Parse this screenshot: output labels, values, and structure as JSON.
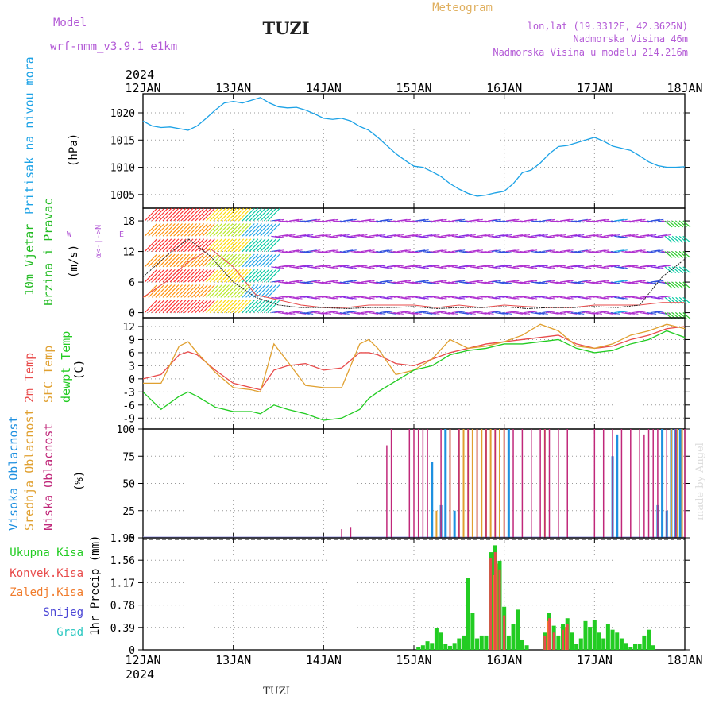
{
  "header": {
    "model_label": "Model",
    "model_name": "wrf-nmm_v3.9.1 e1km",
    "station": "TUZI",
    "meteogram": "Meteogram",
    "lonlat": "lon,lat (19.3312E, 42.3625N)",
    "elevation": "Nadmorska Visina 46m",
    "model_elevation": "Nadmorska Visina u modelu 214.216m"
  },
  "time_axis": {
    "year": "2024",
    "days": [
      "12JAN",
      "13JAN",
      "14JAN",
      "15JAN",
      "16JAN",
      "17JAN",
      "18JAN"
    ]
  },
  "footer": {
    "station": "TUZI",
    "credit": "made by Angel"
  },
  "colors": {
    "pressure": "#1ca2e6",
    "wind_label": "#22bb22",
    "wind_unit_symbol": "#b35ad6",
    "temp2m": "#e84b4b",
    "sfc": "#e0a030",
    "dewpt": "#22cc22",
    "cloud_high": "#1e90e0",
    "cloud_mid": "#e0a030",
    "cloud_low": "#c0287a",
    "precip_total": "#22cc22",
    "precip_conv": "#e84b4b",
    "precip_frozen": "#f07b2b",
    "snow": "#4a45d6",
    "grad": "#2ac7c0",
    "header_purple": "#b35ad6",
    "header_orange": "#e0b060"
  },
  "chart_data": [
    {
      "type": "line",
      "id": "pressure",
      "ylabel_lines": [
        "Pritisak na nivou mora",
        "(hPa)"
      ],
      "yticks": [
        1005,
        1010,
        1015,
        1020
      ],
      "ylim": [
        1002.5,
        1023.5
      ],
      "x_unit": "days since 12JAN 00",
      "x": [
        0,
        0.1,
        0.2,
        0.3,
        0.4,
        0.5,
        0.6,
        0.7,
        0.8,
        0.9,
        1.0,
        1.1,
        1.2,
        1.3,
        1.4,
        1.5,
        1.6,
        1.7,
        1.8,
        1.9,
        2.0,
        2.1,
        2.2,
        2.3,
        2.4,
        2.5,
        2.6,
        2.7,
        2.8,
        2.9,
        3.0,
        3.1,
        3.2,
        3.3,
        3.4,
        3.5,
        3.6,
        3.7,
        3.8,
        3.9,
        4.0,
        4.1,
        4.2,
        4.3,
        4.4,
        4.5,
        4.6,
        4.7,
        4.8,
        4.9,
        5.0,
        5.1,
        5.2,
        5.3,
        5.4,
        5.5,
        5.6,
        5.7,
        5.8,
        5.9,
        6.0
      ],
      "series": [
        {
          "values": [
            1018.5,
            1017.6,
            1017.3,
            1017.4,
            1017.1,
            1016.8,
            1017.6,
            1019.0,
            1020.5,
            1021.8,
            1022.1,
            1021.8,
            1022.3,
            1022.8,
            1021.8,
            1021.1,
            1020.9,
            1021.0,
            1020.5,
            1019.8,
            1019.0,
            1018.8,
            1019.0,
            1018.5,
            1017.5,
            1016.8,
            1015.5,
            1014.0,
            1012.5,
            1011.3,
            1010.2,
            1010.0,
            1009.2,
            1008.3,
            1007.0,
            1006.0,
            1005.2,
            1004.7,
            1004.9,
            1005.3,
            1005.6,
            1007.0,
            1009.0,
            1009.5,
            1010.8,
            1012.5,
            1013.8,
            1014.0,
            1014.5,
            1015.0,
            1015.5,
            1014.8,
            1013.9,
            1013.5,
            1013.1,
            1012.1,
            1011.0,
            1010.3,
            1010.0,
            1010.0,
            1010.1
          ]
        }
      ]
    },
    {
      "type": "line",
      "id": "wind",
      "ylabel_lines": [
        "10m Vjetar",
        "Brzina i Pravac",
        "(m/s)"
      ],
      "direction_key": "N",
      "direction_labels": [
        "W",
        "E",
        "α<-|->"
      ],
      "yticks": [
        0,
        6,
        12,
        18
      ],
      "ylim": [
        -1,
        20.5
      ],
      "x": [
        0,
        0.25,
        0.5,
        0.75,
        1.0,
        1.25,
        1.5,
        1.75,
        2.0,
        2.25,
        2.5,
        2.75,
        3.0,
        3.25,
        3.5,
        3.75,
        4.0,
        4.25,
        4.5,
        4.75,
        5.0,
        5.25,
        5.5,
        5.75,
        6.0
      ],
      "series": [
        {
          "values": [
            3.0,
            6.0,
            10.0,
            12.5,
            9.0,
            3.5,
            2.5,
            1.5,
            1.0,
            1.0,
            1.5,
            1.5,
            1.5,
            1.0,
            1.5,
            1.0,
            1.5,
            1.2,
            1.0,
            1.0,
            1.5,
            1.5,
            1.5,
            2.0,
            2.0
          ]
        },
        {
          "values": [
            7.0,
            11.0,
            14.5,
            11.0,
            6.0,
            3.0,
            1.5,
            1.0,
            1.0,
            0.8,
            1.0,
            1.0,
            1.2,
            0.8,
            1.0,
            1.0,
            1.2,
            0.8,
            1.0,
            1.0,
            1.2,
            1.0,
            1.5,
            7.0,
            10.5
          ]
        }
      ]
    },
    {
      "type": "line",
      "id": "temperature",
      "ylabel_lines": [
        "2m Temp",
        "SFC Temp",
        "dewpt Temp",
        "(C)"
      ],
      "yticks": [
        -9,
        -6,
        -3,
        0,
        3,
        6,
        9,
        12
      ],
      "ylim": [
        -11.5,
        14
      ],
      "x": [
        0,
        0.2,
        0.4,
        0.5,
        0.6,
        0.8,
        1.0,
        1.2,
        1.3,
        1.45,
        1.6,
        1.8,
        2.0,
        2.2,
        2.4,
        2.5,
        2.6,
        2.8,
        3.0,
        3.2,
        3.4,
        3.6,
        3.8,
        4.0,
        4.2,
        4.4,
        4.6,
        4.8,
        5.0,
        5.2,
        5.4,
        5.6,
        5.8,
        6.0
      ],
      "series": [
        {
          "name": "2m Temp",
          "values": [
            0,
            1.0,
            5.5,
            6.2,
            5.5,
            2.0,
            -1.0,
            -2.0,
            -2.5,
            2.0,
            3.0,
            3.5,
            2.0,
            2.5,
            6.0,
            6.0,
            5.5,
            3.5,
            3.0,
            4.5,
            6.0,
            7.0,
            8.0,
            8.5,
            9.0,
            9.5,
            10.0,
            8.0,
            7.0,
            7.5,
            9.0,
            10.0,
            11.5,
            12.0
          ]
        },
        {
          "name": "SFC Temp",
          "values": [
            -1.0,
            -1.0,
            7.5,
            8.5,
            6.0,
            1.5,
            -2.0,
            -2.5,
            -3.0,
            8.0,
            4.0,
            -1.5,
            -2.0,
            -2.0,
            8.0,
            9.0,
            7.0,
            1.0,
            2.0,
            4.5,
            9.0,
            7.0,
            7.5,
            8.5,
            10.0,
            12.5,
            11.0,
            7.5,
            7.0,
            8.0,
            10.0,
            11.0,
            12.5,
            11.5
          ]
        },
        {
          "name": "dewpt Temp",
          "values": [
            -3.0,
            -7.0,
            -4.0,
            -3.0,
            -4.0,
            -6.5,
            -7.5,
            -7.5,
            -8.0,
            -6.0,
            -7.0,
            -8.0,
            -9.5,
            -9.0,
            -7.0,
            -4.5,
            -3.0,
            -0.5,
            2.0,
            3.0,
            5.5,
            6.5,
            7.0,
            8.0,
            8.0,
            8.5,
            9.0,
            7.0,
            6.0,
            6.5,
            8.0,
            9.0,
            11.0,
            9.5
          ]
        }
      ]
    },
    {
      "type": "bar",
      "id": "clouds",
      "ylabel_lines": [
        "Visoka Oblacnost",
        "Srednja Oblacnost",
        "Niska Oblacnost",
        "(%)"
      ],
      "yticks": [
        0,
        25,
        50,
        75,
        100
      ],
      "ylim": [
        0,
        100
      ],
      "series": [
        {
          "name": "Visoka Oblacnost",
          "x": [
            3.2,
            3.3,
            3.35,
            3.45,
            4.05,
            5.2,
            5.25,
            5.7,
            5.75,
            5.8,
            5.85,
            5.9,
            5.95
          ],
          "values": [
            70,
            30,
            100,
            25,
            100,
            75,
            95,
            30,
            100,
            25,
            100,
            100,
            100
          ]
        },
        {
          "name": "Srednja Oblacnost",
          "x": [
            3.25,
            3.4,
            3.5,
            3.55,
            3.6,
            3.65,
            3.7,
            3.75,
            3.8,
            3.85,
            3.9,
            3.95,
            4.0,
            4.45,
            5.85,
            5.92,
            5.97
          ],
          "values": [
            25,
            100,
            100,
            100,
            100,
            100,
            100,
            100,
            100,
            100,
            100,
            100,
            100,
            100,
            100,
            100,
            100
          ]
        },
        {
          "name": "Niska Oblacnost",
          "x": [
            2.2,
            2.3,
            2.7,
            2.75,
            2.95,
            3.0,
            3.05,
            3.1,
            3.15,
            3.3,
            3.4,
            3.5,
            3.6,
            3.7,
            3.8,
            3.9,
            4.0,
            4.1,
            4.2,
            4.3,
            4.4,
            4.45,
            4.5,
            4.6,
            4.7,
            5.0,
            5.1,
            5.2,
            5.3,
            5.4,
            5.5,
            5.55,
            5.6,
            5.65,
            5.7,
            5.8,
            5.9,
            6.0
          ],
          "values": [
            8,
            10,
            85,
            100,
            100,
            100,
            100,
            100,
            100,
            100,
            100,
            100,
            100,
            100,
            100,
            100,
            100,
            100,
            100,
            100,
            100,
            100,
            100,
            100,
            100,
            100,
            100,
            100,
            100,
            100,
            100,
            95,
            100,
            100,
            100,
            100,
            100,
            100
          ]
        }
      ]
    },
    {
      "type": "bar",
      "id": "precip",
      "ylabel_lines": [
        "1hr Precip (mm)"
      ],
      "legend": [
        "Ukupna Kisa",
        "Konvek.Kisa",
        "Zaledj.Kisa",
        "Snijeg",
        "Grad"
      ],
      "yticks": [
        0,
        0.39,
        0.78,
        1.17,
        1.56,
        1.95
      ],
      "ylim": [
        0,
        1.95
      ],
      "series": [
        {
          "name": "Ukupna Kisa",
          "x": [
            3.05,
            3.1,
            3.15,
            3.2,
            3.25,
            3.3,
            3.35,
            3.4,
            3.45,
            3.5,
            3.55,
            3.6,
            3.65,
            3.7,
            3.75,
            3.8,
            3.85,
            3.9,
            3.95,
            4.0,
            4.05,
            4.1,
            4.15,
            4.2,
            4.25,
            4.45,
            4.5,
            4.55,
            4.6,
            4.65,
            4.7,
            4.75,
            4.8,
            4.85,
            4.9,
            4.95,
            5.0,
            5.05,
            5.1,
            5.15,
            5.2,
            5.25,
            5.3,
            5.35,
            5.4,
            5.45,
            5.5,
            5.55,
            5.6,
            5.65
          ],
          "values": [
            0.05,
            0.08,
            0.15,
            0.12,
            0.38,
            0.3,
            0.1,
            0.07,
            0.12,
            0.2,
            0.25,
            1.25,
            0.65,
            0.2,
            0.25,
            0.25,
            1.7,
            1.82,
            1.55,
            0.75,
            0.25,
            0.45,
            0.7,
            0.18,
            0.08,
            0.3,
            0.65,
            0.42,
            0.25,
            0.45,
            0.55,
            0.3,
            0.1,
            0.2,
            0.5,
            0.4,
            0.52,
            0.3,
            0.2,
            0.45,
            0.35,
            0.3,
            0.2,
            0.12,
            0.05,
            0.1,
            0.1,
            0.25,
            0.35,
            0.08
          ]
        },
        {
          "name": "Konvek.Kisa",
          "x": [
            3.85,
            3.9,
            3.95,
            4.0,
            4.45,
            4.5,
            4.55,
            4.65,
            4.7
          ],
          "values": [
            1.6,
            1.7,
            1.4,
            0.6,
            0.25,
            0.55,
            0.3,
            0.35,
            0.45
          ]
        },
        {
          "name": "Zaledj.Kisa",
          "x": [
            3.88,
            3.92,
            4.48,
            4.68
          ],
          "values": [
            1.3,
            1.5,
            0.5,
            0.4
          ]
        }
      ]
    }
  ]
}
